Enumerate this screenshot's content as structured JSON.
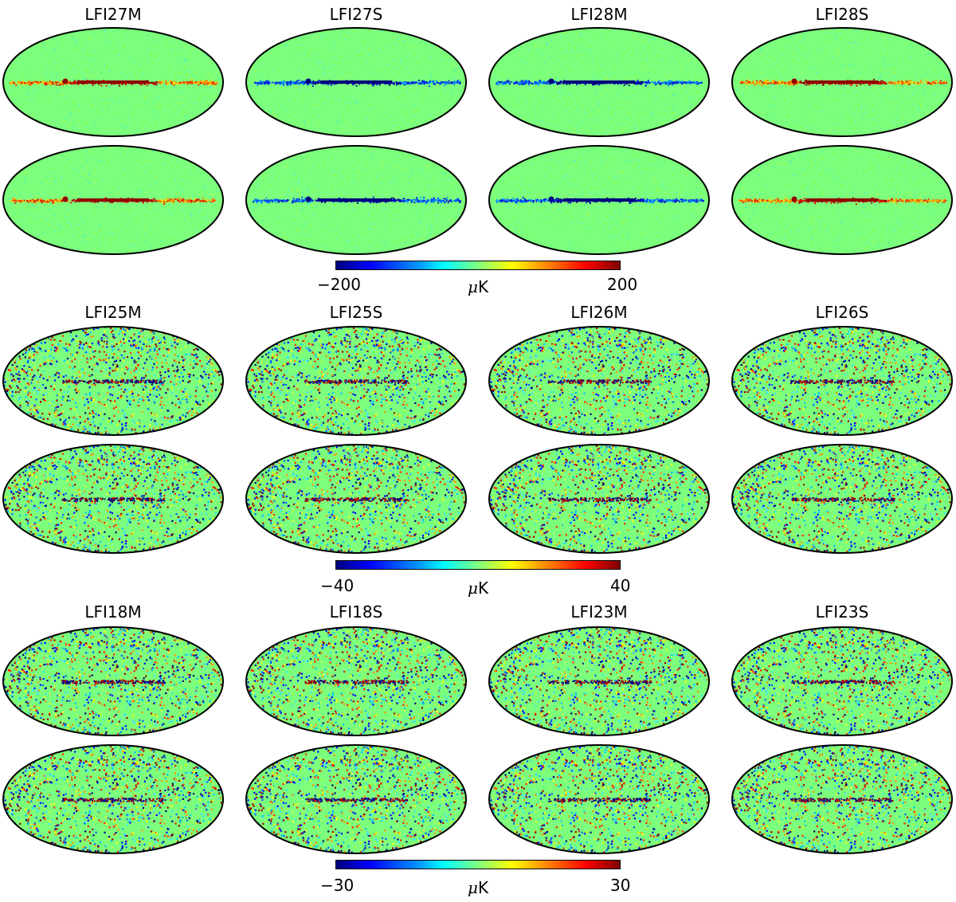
{
  "background_color": "#7cff7c",
  "panel_groups": [
    {
      "names": [
        "LFI27M",
        "LFI27S",
        "LFI28M",
        "LFI28S"
      ],
      "colorbar": {
        "min_label": "−200",
        "max_label": "200",
        "unit": "K",
        "unit_prefix": "μ"
      }
    },
    {
      "names": [
        "LFI25M",
        "LFI25S",
        "LFI26M",
        "LFI26S"
      ],
      "colorbar": {
        "min_label": "−40",
        "max_label": "40",
        "unit": "K",
        "unit_prefix": "μ"
      }
    },
    {
      "names": [
        "LFI18M",
        "LFI18S",
        "LFI23M",
        "LFI23S"
      ],
      "colorbar": {
        "min_label": "−30",
        "max_label": "30",
        "unit": "K",
        "unit_prefix": "μ"
      }
    }
  ]
}
